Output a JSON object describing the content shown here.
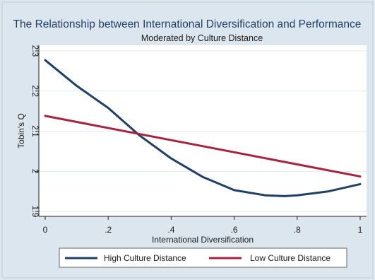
{
  "chart_data": {
    "type": "line",
    "title": "The Relationship between International Diversification and Performance",
    "subtitle": "Moderated by Culture Distance",
    "xlabel": "International Diversification",
    "ylabel": "Tobin's Q",
    "xlim": [
      0,
      1
    ],
    "ylim": [
      1.9,
      2.3
    ],
    "x_ticks": [
      {
        "value": 0,
        "label": "0"
      },
      {
        "value": 0.2,
        "label": ".2"
      },
      {
        "value": 0.4,
        "label": ".4"
      },
      {
        "value": 0.6,
        "label": ".6"
      },
      {
        "value": 0.8,
        "label": ".8"
      },
      {
        "value": 1,
        "label": "1"
      }
    ],
    "y_ticks": [
      {
        "value": 1.9,
        "label": "1.9"
      },
      {
        "value": 2.0,
        "label": "2"
      },
      {
        "value": 2.1,
        "label": "2.1"
      },
      {
        "value": 2.2,
        "label": "2.2"
      },
      {
        "value": 2.3,
        "label": "2.3"
      }
    ],
    "grid": "horizontal",
    "legend_position": "bottom",
    "series": [
      {
        "name": "High Culture Distance",
        "color": "#1f3f66",
        "x": [
          0,
          0.1,
          0.2,
          0.3,
          0.4,
          0.5,
          0.6,
          0.7,
          0.76,
          0.8,
          0.9,
          1.0
        ],
        "y": [
          2.277,
          2.213,
          2.158,
          2.089,
          2.032,
          1.986,
          1.953,
          1.94,
          1.938,
          1.94,
          1.95,
          1.968
        ]
      },
      {
        "name": "Low Culture Distance",
        "color": "#a8233f",
        "x": [
          0,
          1
        ],
        "y": [
          2.138,
          1.987
        ]
      }
    ]
  }
}
